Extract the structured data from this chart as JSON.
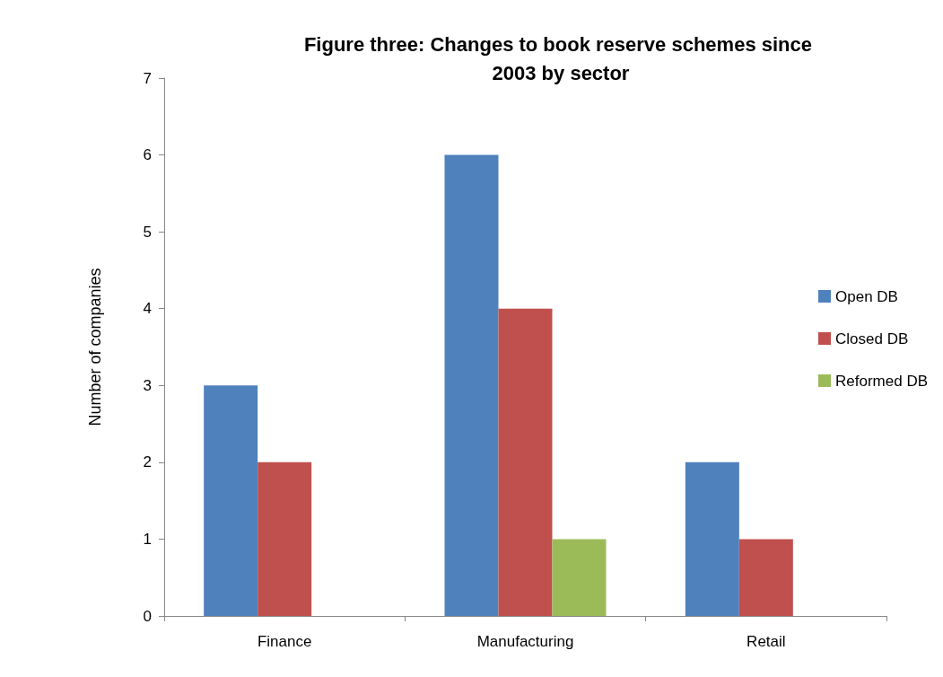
{
  "chart_data": {
    "type": "bar",
    "title": "Figure three: Changes to book reserve schemes since 2003 by sector",
    "ylabel": "Number of companies",
    "categories": [
      "Finance",
      "Manufacturing",
      "Retail"
    ],
    "series": [
      {
        "name": "Open DB",
        "color": "#4f81bd",
        "values": [
          3,
          6,
          2
        ]
      },
      {
        "name": "Closed DB",
        "color": "#c0504d",
        "values": [
          2,
          4,
          1
        ]
      },
      {
        "name": "Reformed DB",
        "color": "#9bbb59",
        "values": [
          null,
          1,
          null
        ]
      }
    ],
    "ylim": [
      0,
      7
    ],
    "yticks": [
      0,
      1,
      2,
      3,
      4,
      5,
      6,
      7
    ],
    "grid": false,
    "legend": "right"
  }
}
